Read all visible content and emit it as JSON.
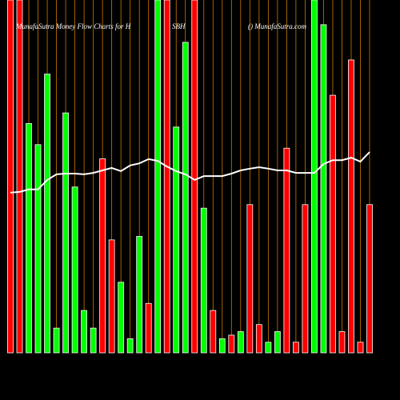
{
  "chart_data": {
    "type": "bar",
    "title": "MunafaSutra  Money Flow  Charts for H",
    "subtitle": "SBH",
    "source": "() MunafaSutra.com",
    "ylim": [
      0,
      100
    ],
    "bar_colors": [
      "#ff0000",
      "#ff0000",
      "#00ff00",
      "#00ff00",
      "#00ff00",
      "#00ff00",
      "#00ff00",
      "#00ff00",
      "#00ff00",
      "#00ff00",
      "#ff0000",
      "#ff0000",
      "#00ff00",
      "#00ff00",
      "#00ff00",
      "#ff0000",
      "#00ff00",
      "#ff0000",
      "#00ff00",
      "#00ff00",
      "#ff0000",
      "#00ff00",
      "#ff0000",
      "#00ff00",
      "#ff0000",
      "#00ff00",
      "#ff0000",
      "#ff0000",
      "#00ff00",
      "#00ff00",
      "#ff0000",
      "#ff0000",
      "#ff0000",
      "#00ff00",
      "#00ff00",
      "#ff0000",
      "#ff0000",
      "#ff0000",
      "#ff0000",
      "#ff0000"
    ],
    "values": [
      100,
      100,
      65,
      59,
      79,
      7,
      68,
      47,
      12,
      7,
      55,
      32,
      20,
      4,
      33,
      14,
      100,
      100,
      64,
      88,
      100,
      41,
      12,
      4,
      5,
      6,
      42,
      8,
      3,
      6,
      58,
      3,
      42,
      100,
      93,
      73,
      6,
      83,
      3,
      42
    ],
    "line": {
      "color": "#ffffff",
      "values": [
        45.4,
        45.6,
        46.3,
        46.3,
        49,
        50.6,
        50.8,
        50.8,
        50.6,
        51,
        51.7,
        52.4,
        51.5,
        53.1,
        53.7,
        54.9,
        54.4,
        52.8,
        51.5,
        50.6,
        49,
        50.1,
        50.1,
        50.1,
        50.8,
        51.7,
        52.2,
        52.6,
        52.2,
        51.7,
        51.7,
        51,
        51,
        51,
        53.5,
        54.6,
        54.6,
        55.3,
        54.2,
        56.9
      ]
    },
    "gridline_color": "#cc7a00"
  }
}
